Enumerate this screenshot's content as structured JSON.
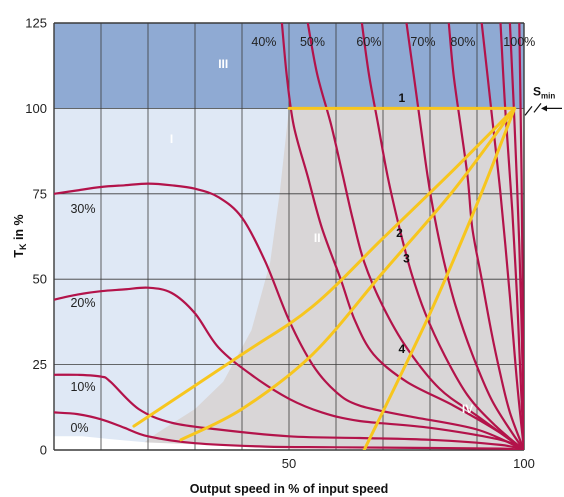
{
  "chart_data": {
    "type": "line",
    "xlabel": "Output speed in % of input speed",
    "ylabel_main": "T",
    "ylabel_sub": "K",
    "ylabel_rest": " in %",
    "xlim": [
      0,
      100
    ],
    "ylim": [
      0,
      125
    ],
    "x_ticks": [
      {
        "value": 50,
        "label": "50"
      },
      {
        "value": 100,
        "label": "100"
      }
    ],
    "y_ticks": [
      {
        "value": 0,
        "label": "0"
      },
      {
        "value": 25,
        "label": "25"
      },
      {
        "value": 50,
        "label": "50"
      },
      {
        "value": 75,
        "label": "75"
      },
      {
        "value": 100,
        "label": "100"
      },
      {
        "value": 125,
        "label": "125"
      }
    ],
    "grid": true,
    "colors": {
      "band_top": "#8faad3",
      "zone_light": "#dfe8f5",
      "zone_grey": "#d9d6d7",
      "curves": "#b3134a",
      "load_lines": "#f7c61e",
      "grid": "#3a3a3a"
    },
    "regions": [
      {
        "label": "I",
        "x": 25,
        "y": 91
      },
      {
        "label": "II",
        "x": 56,
        "y": 62
      },
      {
        "label": "III",
        "x": 36,
        "y": 113
      },
      {
        "label": "IV",
        "x": 88,
        "y": 12
      }
    ],
    "series": [
      {
        "label": "0%",
        "label_x": 3.5,
        "label_y": 6.5,
        "points": [
          [
            0,
            11
          ],
          [
            5,
            10.5
          ],
          [
            10,
            9
          ],
          [
            15,
            6.5
          ],
          [
            20,
            4
          ],
          [
            30,
            2
          ],
          [
            45,
            1
          ],
          [
            60,
            0.8
          ],
          [
            80,
            0.6
          ],
          [
            95,
            0.4
          ],
          [
            100,
            0
          ]
        ]
      },
      {
        "label": "10%",
        "label_x": 3.5,
        "label_y": 18.5,
        "points": [
          [
            0,
            22
          ],
          [
            5,
            22
          ],
          [
            10,
            21.5
          ],
          [
            12,
            20
          ],
          [
            18,
            12
          ],
          [
            25,
            8
          ],
          [
            35,
            6
          ],
          [
            50,
            4
          ],
          [
            65,
            3.5
          ],
          [
            80,
            3
          ],
          [
            95,
            1.5
          ],
          [
            100,
            0
          ]
        ]
      },
      {
        "label": "20%",
        "label_x": 3.5,
        "label_y": 43,
        "points": [
          [
            0,
            44
          ],
          [
            5,
            45.5
          ],
          [
            10,
            46.5
          ],
          [
            15,
            47
          ],
          [
            20,
            47.5
          ],
          [
            25,
            46
          ],
          [
            30,
            40
          ],
          [
            35,
            30
          ],
          [
            42,
            22
          ],
          [
            50,
            15
          ],
          [
            57,
            11
          ],
          [
            65,
            8.5
          ],
          [
            80,
            6.5
          ],
          [
            95,
            3
          ],
          [
            100,
            0
          ]
        ]
      },
      {
        "label": "30%",
        "label_x": 3.5,
        "label_y": 70.5,
        "points": [
          [
            0,
            75
          ],
          [
            5,
            76
          ],
          [
            10,
            77
          ],
          [
            15,
            77.5
          ],
          [
            20,
            78
          ],
          [
            25,
            77.5
          ],
          [
            30,
            76.5
          ],
          [
            35,
            74
          ],
          [
            40,
            68
          ],
          [
            45,
            55
          ],
          [
            50,
            38
          ],
          [
            55,
            25
          ],
          [
            60,
            17
          ],
          [
            65,
            13
          ],
          [
            75,
            10
          ],
          [
            90,
            6
          ],
          [
            100,
            0
          ]
        ]
      },
      {
        "label": "40%",
        "label_x": 42,
        "label_y": 119.5,
        "points": [
          [
            48.5,
            125
          ],
          [
            49.5,
            110
          ],
          [
            51,
            95
          ],
          [
            54,
            80
          ],
          [
            57,
            65
          ],
          [
            61,
            50
          ],
          [
            64,
            38
          ],
          [
            68,
            28
          ],
          [
            75,
            20
          ],
          [
            85,
            13
          ],
          [
            95,
            5
          ],
          [
            100,
            0
          ]
        ]
      },
      {
        "label": "50%",
        "label_x": 55,
        "label_y": 119.5,
        "points": [
          [
            54,
            125
          ],
          [
            56,
            110
          ],
          [
            59,
            95
          ],
          [
            61.5,
            80
          ],
          [
            63.5,
            68
          ],
          [
            66,
            55
          ],
          [
            70,
            42
          ],
          [
            75,
            30
          ],
          [
            82,
            18
          ],
          [
            90,
            10
          ],
          [
            100,
            0
          ]
        ]
      },
      {
        "label": "60%",
        "label_x": 67,
        "label_y": 119.5,
        "points": [
          [
            65.5,
            125
          ],
          [
            67,
            110
          ],
          [
            69,
            95
          ],
          [
            71,
            80
          ],
          [
            73.5,
            65
          ],
          [
            76,
            52
          ],
          [
            79,
            40
          ],
          [
            83,
            28
          ],
          [
            88,
            16
          ],
          [
            94,
            7
          ],
          [
            100,
            0
          ]
        ]
      },
      {
        "label": "70%",
        "label_x": 78.5,
        "label_y": 119.5,
        "points": [
          [
            75,
            125
          ],
          [
            76.5,
            110
          ],
          [
            78,
            95
          ],
          [
            79.5,
            80
          ],
          [
            81,
            68
          ],
          [
            83,
            55
          ],
          [
            85.5,
            42
          ],
          [
            89,
            28
          ],
          [
            93,
            15
          ],
          [
            97,
            6
          ],
          [
            100,
            0
          ]
        ]
      },
      {
        "label": "80%",
        "label_x": 87,
        "label_y": 119.5,
        "points": [
          [
            84,
            125
          ],
          [
            85,
            110
          ],
          [
            86.5,
            95
          ],
          [
            88,
            80
          ],
          [
            89,
            65
          ],
          [
            91,
            50
          ],
          [
            93,
            35
          ],
          [
            95,
            22
          ],
          [
            97,
            11
          ],
          [
            100,
            0
          ]
        ]
      },
      {
        "label": "100%",
        "label_x": 99,
        "label_y": 119.5,
        "points": [
          [
            91,
            125
          ],
          [
            93,
            100
          ],
          [
            95,
            75
          ],
          [
            97,
            45
          ],
          [
            98.5,
            20
          ],
          [
            100,
            0
          ]
        ]
      },
      {
        "points": [
          [
            95,
            125
          ],
          [
            96,
            100
          ],
          [
            97.5,
            70
          ],
          [
            98.5,
            45
          ],
          [
            99.3,
            20
          ],
          [
            100,
            0
          ]
        ]
      },
      {
        "points": [
          [
            97,
            125
          ],
          [
            98,
            95
          ],
          [
            99,
            60
          ],
          [
            99.6,
            30
          ],
          [
            100,
            0
          ]
        ]
      },
      {
        "points": [
          [
            99,
            125
          ],
          [
            99.5,
            80
          ],
          [
            100,
            0
          ]
        ]
      }
    ],
    "load_lines": [
      {
        "label": "1",
        "label_x": 74,
        "label_y": 103,
        "points": [
          [
            50,
            100
          ],
          [
            98,
            100
          ]
        ]
      },
      {
        "label": "2",
        "label_x": 73.5,
        "label_y": 63.5,
        "points": [
          [
            17,
            7
          ],
          [
            40,
            28
          ],
          [
            55,
            42
          ],
          [
            70,
            62
          ],
          [
            85,
            82
          ],
          [
            98,
            100
          ]
        ]
      },
      {
        "label": "3",
        "label_x": 75,
        "label_y": 56,
        "points": [
          [
            27,
            3
          ],
          [
            40,
            12
          ],
          [
            55,
            28
          ],
          [
            70,
            52
          ],
          [
            85,
            76
          ],
          [
            98,
            100
          ]
        ]
      },
      {
        "label": "4",
        "label_x": 74,
        "label_y": 29.5,
        "points": [
          [
            66,
            0
          ],
          [
            80,
            40
          ],
          [
            90,
            72
          ],
          [
            98,
            100
          ]
        ]
      }
    ],
    "annotations": [
      {
        "text": "S",
        "sub": "min"
      }
    ]
  }
}
